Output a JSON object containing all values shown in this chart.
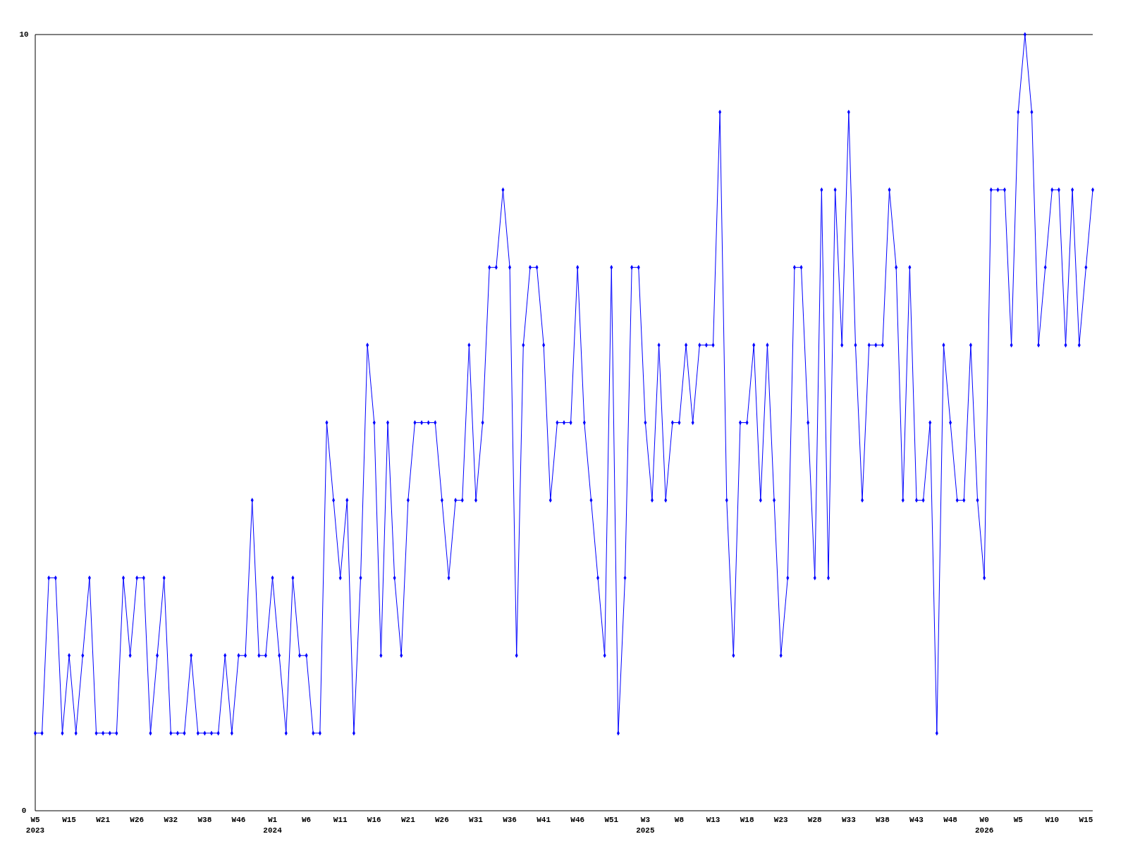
{
  "chart_data": {
    "type": "line",
    "categories": [
      "W5\n2023",
      null,
      null,
      null,
      null,
      "W15",
      null,
      null,
      null,
      null,
      "W21",
      null,
      null,
      null,
      null,
      "W26",
      null,
      null,
      null,
      null,
      "W32",
      null,
      null,
      null,
      null,
      "W38",
      null,
      null,
      null,
      null,
      "W46",
      null,
      null,
      null,
      null,
      "W1\n2024",
      null,
      null,
      null,
      null,
      "W6",
      null,
      null,
      null,
      null,
      "W11",
      null,
      null,
      null,
      null,
      "W16",
      null,
      null,
      null,
      null,
      "W21",
      null,
      null,
      null,
      null,
      "W26",
      null,
      null,
      null,
      null,
      "W31",
      null,
      null,
      null,
      null,
      "W36",
      null,
      null,
      null,
      null,
      "W41",
      null,
      null,
      null,
      null,
      "W46",
      null,
      null,
      null,
      null,
      "W51",
      null,
      null,
      null,
      null,
      "W3\n2025",
      null,
      null,
      null,
      null,
      "W8",
      null,
      null,
      null,
      null,
      "W13",
      null,
      null,
      null,
      null,
      "W18",
      null,
      null,
      null,
      null,
      "W23",
      null,
      null,
      null,
      null,
      "W28",
      null,
      null,
      null,
      null,
      "W33",
      null,
      null,
      null,
      null,
      "W38",
      null,
      null,
      null,
      null,
      "W43",
      null,
      null,
      null,
      null,
      "W48",
      null,
      null,
      null,
      null,
      "W0\n2026",
      null,
      null,
      null,
      null,
      "W5",
      null,
      null,
      null,
      null,
      "W10",
      null,
      null,
      null,
      null,
      "W15",
      null
    ],
    "series": [
      {
        "color": "#0000ff",
        "values": [
          1,
          1,
          3,
          3,
          1,
          2,
          1,
          2,
          3,
          1,
          1,
          1,
          1,
          3,
          2,
          3,
          3,
          1,
          2,
          3,
          1,
          1,
          1,
          2,
          1,
          1,
          1,
          1,
          2,
          1,
          2,
          2,
          4,
          2,
          2,
          3,
          2,
          1,
          3,
          2,
          2,
          1,
          1,
          5,
          4,
          3,
          4,
          1,
          3,
          6,
          5,
          2,
          5,
          3,
          2,
          4,
          5,
          5,
          5,
          5,
          4,
          3,
          4,
          4,
          6,
          4,
          5,
          7,
          7,
          8,
          7,
          2,
          6,
          7,
          7,
          6,
          4,
          5,
          5,
          5,
          7,
          5,
          4,
          3,
          2,
          7,
          1,
          3,
          7,
          7,
          5,
          4,
          6,
          4,
          5,
          5,
          6,
          5,
          6,
          6,
          6,
          9,
          4,
          2,
          5,
          5,
          6,
          4,
          6,
          4,
          2,
          3,
          7,
          7,
          5,
          3,
          8,
          3,
          8,
          6,
          9,
          6,
          4,
          6,
          6,
          6,
          8,
          7,
          4,
          7,
          4,
          4,
          5,
          1,
          6,
          5,
          4,
          4,
          6,
          4,
          3,
          8,
          8,
          8,
          6,
          9,
          10,
          9,
          6,
          7,
          8,
          8,
          6,
          8,
          6,
          7,
          8
        ]
      }
    ],
    "ylim": [
      0,
      10
    ],
    "yticks": [
      0,
      10
    ],
    "grid": false,
    "marker": "diamond",
    "line_style": "solid"
  }
}
